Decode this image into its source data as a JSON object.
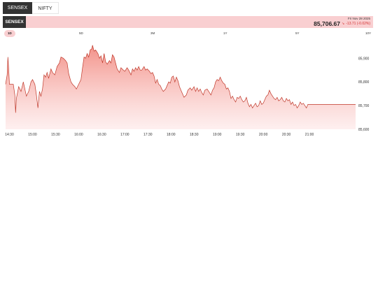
{
  "tabs": [
    {
      "label": "SENSEX",
      "active": true
    },
    {
      "label": "NIFTY",
      "active": false
    }
  ],
  "header": {
    "index_name": "SENSEX",
    "date": "Fri Nov 28 2025",
    "price": "85,706.67",
    "change": "-13.71 (-0.02%)",
    "change_direction": "down",
    "change_color": "#d32f2f",
    "bg_color": "#f9cfd1"
  },
  "ranges": [
    {
      "label": "1D",
      "active": true
    },
    {
      "label": "5D",
      "active": false
    },
    {
      "label": "3M",
      "active": false
    },
    {
      "label": "1Y",
      "active": false
    },
    {
      "label": "5Y",
      "active": false
    },
    {
      "label": "10Y",
      "active": false
    }
  ],
  "chart_data": {
    "type": "area",
    "title": "",
    "xlabel": "",
    "ylabel": "",
    "line_color": "#c0392b",
    "fill_color": "#f28b82",
    "ylim": [
      85600,
      85960
    ],
    "xlim": [
      "14:25",
      "22:00"
    ],
    "x_ticks": [
      "14:30",
      "15:00",
      "15:30",
      "16:00",
      "16:30",
      "17:00",
      "17:30",
      "18:00",
      "18:30",
      "19:00",
      "19:30",
      "20:00",
      "20:30",
      "21:00"
    ],
    "y_ticks": [
      {
        "value": 85900,
        "label": "85,900"
      },
      {
        "value": 85800,
        "label": "85,800"
      },
      {
        "value": 85700,
        "label": "85,700"
      },
      {
        "value": 85600,
        "label": "85,600"
      }
    ],
    "grid": false,
    "points": [
      [
        "14:25",
        85790
      ],
      [
        "14:27",
        85830
      ],
      [
        "14:28",
        85905
      ],
      [
        "14:29",
        85855
      ],
      [
        "14:30",
        85790
      ],
      [
        "14:35",
        85790
      ],
      [
        "14:37",
        85745
      ],
      [
        "14:38",
        85670
      ],
      [
        "14:39",
        85730
      ],
      [
        "14:42",
        85780
      ],
      [
        "14:45",
        85760
      ],
      [
        "14:48",
        85800
      ],
      [
        "14:52",
        85740
      ],
      [
        "14:55",
        85760
      ],
      [
        "14:58",
        85800
      ],
      [
        "15:00",
        85810
      ],
      [
        "15:03",
        85790
      ],
      [
        "15:05",
        85745
      ],
      [
        "15:07",
        85690
      ],
      [
        "15:09",
        85760
      ],
      [
        "15:11",
        85740
      ],
      [
        "15:13",
        85770
      ],
      [
        "15:15",
        85830
      ],
      [
        "15:17",
        85820
      ],
      [
        "15:19",
        85840
      ],
      [
        "15:21",
        85815
      ],
      [
        "15:24",
        85855
      ],
      [
        "15:26",
        85840
      ],
      [
        "15:29",
        85830
      ],
      [
        "15:32",
        85865
      ],
      [
        "15:35",
        85880
      ],
      [
        "15:37",
        85905
      ],
      [
        "15:40",
        85900
      ],
      [
        "15:43",
        85890
      ],
      [
        "15:45",
        85880
      ],
      [
        "15:47",
        85835
      ],
      [
        "15:50",
        85800
      ],
      [
        "15:52",
        85790
      ],
      [
        "15:55",
        85780
      ],
      [
        "15:57",
        85770
      ],
      [
        "16:00",
        85790
      ],
      [
        "16:03",
        85810
      ],
      [
        "16:05",
        85860
      ],
      [
        "16:07",
        85905
      ],
      [
        "16:09",
        85900
      ],
      [
        "16:11",
        85920
      ],
      [
        "16:13",
        85905
      ],
      [
        "16:15",
        85935
      ],
      [
        "16:17",
        85940
      ],
      [
        "16:18",
        85955
      ],
      [
        "16:20",
        85930
      ],
      [
        "16:22",
        85935
      ],
      [
        "16:25",
        85920
      ],
      [
        "16:27",
        85900
      ],
      [
        "16:29",
        85910
      ],
      [
        "16:31",
        85880
      ],
      [
        "16:33",
        85920
      ],
      [
        "16:35",
        85885
      ],
      [
        "16:37",
        85875
      ],
      [
        "16:40",
        85890
      ],
      [
        "16:42",
        85880
      ],
      [
        "16:44",
        85915
      ],
      [
        "16:46",
        85905
      ],
      [
        "16:48",
        85880
      ],
      [
        "16:50",
        85855
      ],
      [
        "16:53",
        85840
      ],
      [
        "16:55",
        85860
      ],
      [
        "16:58",
        85850
      ],
      [
        "17:00",
        85845
      ],
      [
        "17:03",
        85860
      ],
      [
        "17:05",
        85850
      ],
      [
        "17:08",
        85830
      ],
      [
        "17:10",
        85855
      ],
      [
        "17:12",
        85845
      ],
      [
        "17:14",
        85860
      ],
      [
        "17:16",
        85850
      ],
      [
        "17:18",
        85865
      ],
      [
        "17:20",
        85850
      ],
      [
        "17:22",
        85850
      ],
      [
        "17:25",
        85865
      ],
      [
        "17:27",
        85850
      ],
      [
        "17:29",
        85855
      ],
      [
        "17:32",
        85845
      ],
      [
        "17:34",
        85835
      ],
      [
        "17:36",
        85840
      ],
      [
        "17:38",
        85825
      ],
      [
        "17:40",
        85795
      ],
      [
        "17:42",
        85810
      ],
      [
        "17:44",
        85790
      ],
      [
        "17:46",
        85785
      ],
      [
        "17:48",
        85770
      ],
      [
        "17:50",
        85760
      ],
      [
        "17:53",
        85770
      ],
      [
        "17:55",
        85785
      ],
      [
        "17:57",
        85800
      ],
      [
        "17:59",
        85795
      ],
      [
        "18:01",
        85820
      ],
      [
        "18:03",
        85825
      ],
      [
        "18:05",
        85800
      ],
      [
        "18:07",
        85820
      ],
      [
        "18:09",
        85805
      ],
      [
        "18:11",
        85780
      ],
      [
        "18:13",
        85765
      ],
      [
        "18:15",
        85750
      ],
      [
        "18:17",
        85735
      ],
      [
        "18:20",
        85745
      ],
      [
        "18:22",
        85765
      ],
      [
        "18:25",
        85775
      ],
      [
        "18:27",
        85765
      ],
      [
        "18:30",
        85780
      ],
      [
        "18:32",
        85760
      ],
      [
        "18:34",
        85775
      ],
      [
        "18:36",
        85760
      ],
      [
        "18:38",
        85770
      ],
      [
        "18:40",
        85755
      ],
      [
        "18:42",
        85745
      ],
      [
        "18:44",
        85765
      ],
      [
        "18:47",
        85770
      ],
      [
        "18:49",
        85760
      ],
      [
        "18:52",
        85745
      ],
      [
        "18:54",
        85765
      ],
      [
        "18:56",
        85775
      ],
      [
        "18:58",
        85800
      ],
      [
        "19:00",
        85810
      ],
      [
        "19:02",
        85805
      ],
      [
        "19:04",
        85820
      ],
      [
        "19:06",
        85805
      ],
      [
        "19:08",
        85795
      ],
      [
        "19:10",
        85790
      ],
      [
        "19:12",
        85770
      ],
      [
        "19:14",
        85775
      ],
      [
        "19:16",
        85760
      ],
      [
        "19:18",
        85730
      ],
      [
        "19:20",
        85740
      ],
      [
        "19:22",
        85725
      ],
      [
        "19:24",
        85715
      ],
      [
        "19:26",
        85735
      ],
      [
        "19:28",
        85730
      ],
      [
        "19:30",
        85740
      ],
      [
        "19:32",
        85725
      ],
      [
        "19:34",
        85715
      ],
      [
        "19:36",
        85720
      ],
      [
        "19:38",
        85735
      ],
      [
        "19:40",
        85710
      ],
      [
        "19:42",
        85695
      ],
      [
        "19:44",
        85705
      ],
      [
        "19:46",
        85690
      ],
      [
        "19:48",
        85700
      ],
      [
        "19:50",
        85710
      ],
      [
        "19:52",
        85695
      ],
      [
        "19:54",
        85700
      ],
      [
        "19:56",
        85720
      ],
      [
        "19:58",
        85705
      ],
      [
        "20:00",
        85710
      ],
      [
        "20:02",
        85725
      ],
      [
        "20:04",
        85740
      ],
      [
        "20:06",
        85745
      ],
      [
        "20:08",
        85765
      ],
      [
        "20:10",
        85750
      ],
      [
        "20:12",
        85740
      ],
      [
        "20:14",
        85730
      ],
      [
        "20:16",
        85725
      ],
      [
        "20:18",
        85735
      ],
      [
        "20:20",
        85720
      ],
      [
        "20:22",
        85725
      ],
      [
        "20:24",
        85735
      ],
      [
        "20:26",
        85720
      ],
      [
        "20:28",
        85715
      ],
      [
        "20:30",
        85730
      ],
      [
        "20:32",
        85720
      ],
      [
        "20:34",
        85725
      ],
      [
        "20:36",
        85705
      ],
      [
        "20:38",
        85715
      ],
      [
        "20:40",
        85700
      ],
      [
        "20:42",
        85705
      ],
      [
        "20:44",
        85690
      ],
      [
        "20:46",
        85700
      ],
      [
        "20:48",
        85715
      ],
      [
        "20:50",
        85705
      ],
      [
        "20:52",
        85710
      ],
      [
        "20:54",
        85700
      ],
      [
        "20:56",
        85690
      ],
      [
        "20:58",
        85705
      ],
      [
        "21:00",
        85705
      ],
      [
        "22:00",
        85705
      ]
    ]
  }
}
